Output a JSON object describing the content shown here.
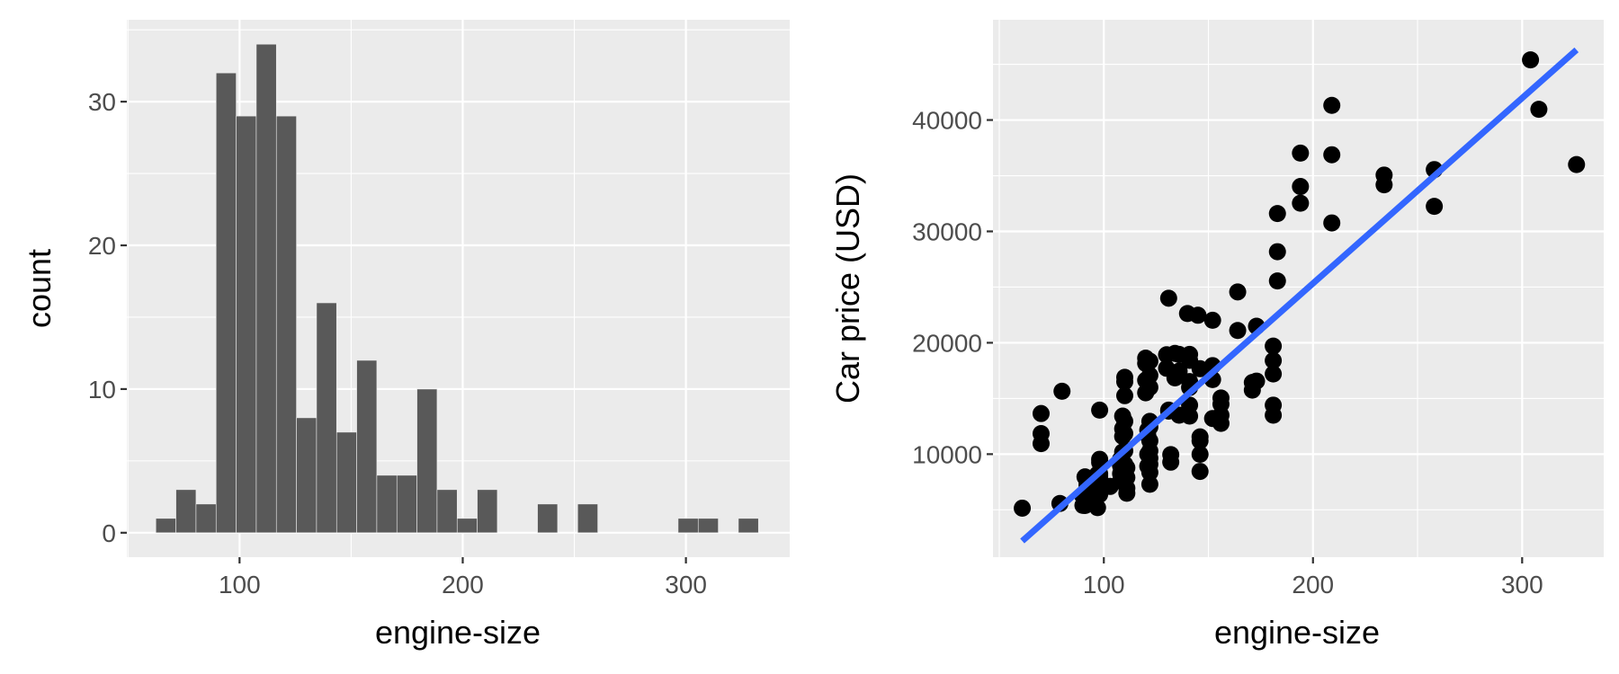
{
  "chart_data": [
    {
      "type": "bar",
      "subtype": "histogram",
      "xlabel": "engine-size",
      "ylabel": "count",
      "xlim": [
        49.5,
        346.5
      ],
      "ylim": [
        -1.7,
        35.7
      ],
      "xticks": [
        100,
        200,
        300
      ],
      "yticks": [
        0,
        10,
        20,
        30
      ],
      "bin_width": 9,
      "bar_color": "#595959",
      "bins": [
        {
          "x": 67,
          "count": 1
        },
        {
          "x": 76,
          "count": 3
        },
        {
          "x": 85,
          "count": 2
        },
        {
          "x": 94,
          "count": 32
        },
        {
          "x": 103,
          "count": 29
        },
        {
          "x": 112,
          "count": 34
        },
        {
          "x": 121,
          "count": 29
        },
        {
          "x": 130,
          "count": 8
        },
        {
          "x": 139,
          "count": 16
        },
        {
          "x": 148,
          "count": 7
        },
        {
          "x": 157,
          "count": 12
        },
        {
          "x": 166,
          "count": 4
        },
        {
          "x": 175,
          "count": 4
        },
        {
          "x": 184,
          "count": 10
        },
        {
          "x": 193,
          "count": 3
        },
        {
          "x": 202,
          "count": 1
        },
        {
          "x": 211,
          "count": 3
        },
        {
          "x": 220,
          "count": 0
        },
        {
          "x": 229,
          "count": 0
        },
        {
          "x": 238,
          "count": 2
        },
        {
          "x": 247,
          "count": 0
        },
        {
          "x": 256,
          "count": 2
        },
        {
          "x": 265,
          "count": 0
        },
        {
          "x": 274,
          "count": 0
        },
        {
          "x": 283,
          "count": 0
        },
        {
          "x": 292,
          "count": 0
        },
        {
          "x": 301,
          "count": 1
        },
        {
          "x": 310,
          "count": 1
        },
        {
          "x": 319,
          "count": 0
        },
        {
          "x": 328,
          "count": 1
        }
      ]
    },
    {
      "type": "scatter",
      "xlabel": "engine-size",
      "ylabel": "Car price (USD)",
      "xlim": [
        47,
        339
      ],
      "ylim": [
        750,
        49000
      ],
      "xticks": [
        100,
        200,
        300
      ],
      "yticks": [
        10000,
        20000,
        30000,
        40000
      ],
      "point_color": "#000000",
      "line_color": "#3366ff",
      "trend_line": {
        "x": [
          61,
          326
        ],
        "y": [
          2200,
          46300
        ]
      },
      "points": [
        [
          61,
          5151
        ],
        [
          70,
          13645
        ],
        [
          70,
          11845
        ],
        [
          70,
          10945
        ],
        [
          79,
          5572
        ],
        [
          80,
          15645
        ],
        [
          90,
          5399
        ],
        [
          90,
          6229
        ],
        [
          91,
          5389
        ],
        [
          91,
          6095
        ],
        [
          91,
          7957
        ],
        [
          92,
          6479
        ],
        [
          92,
          6855
        ],
        [
          92,
          7129
        ],
        [
          92,
          7295
        ],
        [
          92,
          7499
        ],
        [
          97,
          7775
        ],
        [
          97,
          7975
        ],
        [
          97,
          8195
        ],
        [
          97,
          5195
        ],
        [
          97,
          6295
        ],
        [
          98,
          6377
        ],
        [
          98,
          7898
        ],
        [
          98,
          8238
        ],
        [
          98,
          9258
        ],
        [
          98,
          8058
        ],
        [
          98,
          13950
        ],
        [
          98,
          9538
        ],
        [
          103,
          7099
        ],
        [
          108,
          7609
        ],
        [
          108,
          8249
        ],
        [
          108,
          8949
        ],
        [
          108,
          9549
        ],
        [
          109,
          10198
        ],
        [
          109,
          11595
        ],
        [
          109,
          12290
        ],
        [
          109,
          13415
        ],
        [
          110,
          15250
        ],
        [
          110,
          16500
        ],
        [
          110,
          16900
        ],
        [
          110,
          11850
        ],
        [
          110,
          10295
        ],
        [
          110,
          12945
        ],
        [
          110,
          9095
        ],
        [
          110,
          8845
        ],
        [
          111,
          6938
        ],
        [
          111,
          6488
        ],
        [
          111,
          7898
        ],
        [
          111,
          8778
        ],
        [
          120,
          15510
        ],
        [
          120,
          18620
        ],
        [
          120,
          18150
        ],
        [
          120,
          16630
        ],
        [
          121,
          12170
        ],
        [
          121,
          11694
        ],
        [
          121,
          9989
        ],
        [
          121,
          8921
        ],
        [
          122,
          7295
        ],
        [
          122,
          8358
        ],
        [
          122,
          9095
        ],
        [
          122,
          9639
        ],
        [
          122,
          10295
        ],
        [
          122,
          11199
        ],
        [
          122,
          12440
        ],
        [
          122,
          12940
        ],
        [
          122,
          17075
        ],
        [
          122,
          18344
        ],
        [
          122,
          15998
        ],
        [
          130,
          18920
        ],
        [
          130,
          17710
        ],
        [
          131,
          24000
        ],
        [
          131,
          13950
        ],
        [
          131,
          13860
        ],
        [
          132,
          9279
        ],
        [
          132,
          9959
        ],
        [
          134,
          16845
        ],
        [
          134,
          19045
        ],
        [
          136,
          13499
        ],
        [
          136,
          17450
        ],
        [
          136,
          18950
        ],
        [
          140,
          22625
        ],
        [
          141,
          14399
        ],
        [
          141,
          13415
        ],
        [
          141,
          15985
        ],
        [
          141,
          16515
        ],
        [
          141,
          18420
        ],
        [
          141,
          18950
        ],
        [
          145,
          22470
        ],
        [
          146,
          8449
        ],
        [
          146,
          9989
        ],
        [
          146,
          11199
        ],
        [
          146,
          11549
        ],
        [
          146,
          17669
        ],
        [
          152,
          13200
        ],
        [
          152,
          16695
        ],
        [
          152,
          17950
        ],
        [
          152,
          22018
        ],
        [
          156,
          12764
        ],
        [
          156,
          13499
        ],
        [
          156,
          14489
        ],
        [
          156,
          15040
        ],
        [
          164,
          21105
        ],
        [
          164,
          24565
        ],
        [
          171,
          15750
        ],
        [
          171,
          16430
        ],
        [
          173,
          16558
        ],
        [
          173,
          21485
        ],
        [
          181,
          13499
        ],
        [
          181,
          14399
        ],
        [
          181,
          17199
        ],
        [
          181,
          18399
        ],
        [
          181,
          19699
        ],
        [
          183,
          25552
        ],
        [
          183,
          28176
        ],
        [
          183,
          31600
        ],
        [
          194,
          32528
        ],
        [
          194,
          34028
        ],
        [
          194,
          37028
        ],
        [
          209,
          30760
        ],
        [
          209,
          36880
        ],
        [
          209,
          41315
        ],
        [
          234,
          34184
        ],
        [
          234,
          35056
        ],
        [
          258,
          32250
        ],
        [
          258,
          35550
        ],
        [
          304,
          45400
        ],
        [
          308,
          40960
        ],
        [
          326,
          36000
        ]
      ]
    }
  ]
}
